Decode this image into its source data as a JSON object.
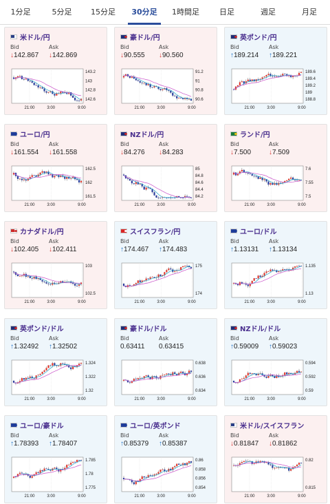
{
  "tabs": [
    {
      "label": "1分足",
      "active": false
    },
    {
      "label": "5分足",
      "active": false
    },
    {
      "label": "15分足",
      "active": false
    },
    {
      "label": "30分足",
      "active": true
    },
    {
      "label": "1時間足",
      "active": false
    },
    {
      "label": "日足",
      "active": false
    },
    {
      "label": "週足",
      "active": false
    },
    {
      "label": "月足",
      "active": false
    }
  ],
  "labels": {
    "bid": "Bid",
    "ask": "Ask"
  },
  "colors": {
    "up": "#1b6fc4",
    "down": "#d6322e",
    "candle_up": "#e03a2f",
    "candle_down": "#2b3f9e",
    "ma_fast": "#22a3c8",
    "ma_slow": "#c84fc8",
    "card_up_bg": "#eef6fb",
    "card_down_bg": "#fcf0f0"
  },
  "pairs": [
    {
      "name": "米ドル/円",
      "flag": "usd",
      "dir": "down",
      "bid": "142.867",
      "ask": "142.869",
      "bid_arrow": "↓",
      "ask_arrow": "↓",
      "x_labels": [
        "21:00",
        "3:00",
        "9:00"
      ],
      "y_labels": [
        "143.2",
        "143",
        "142.8",
        "142.6"
      ]
    },
    {
      "name": "豪ドル/円",
      "flag": "aud",
      "dir": "down",
      "bid": "90.555",
      "ask": "90.560",
      "bid_arrow": "↓",
      "ask_arrow": "↓",
      "x_labels": [
        "21:00",
        "3:00",
        "9:00"
      ],
      "y_labels": [
        "91.2",
        "91",
        "90.8",
        "90.6"
      ]
    },
    {
      "name": "英ポンド/円",
      "flag": "gbp",
      "dir": "up",
      "bid": "189.214",
      "ask": "189.221",
      "bid_arrow": "↑",
      "ask_arrow": "↑",
      "x_labels": [
        "21:00",
        "3:00",
        "9:00"
      ],
      "y_labels": [
        "189.6",
        "189.4",
        "189.2",
        "189",
        "188.8"
      ]
    },
    {
      "name": "ユーロ/円",
      "flag": "eur",
      "dir": "down",
      "bid": "161.554",
      "ask": "161.558",
      "bid_arrow": "↓",
      "ask_arrow": "↓",
      "x_labels": [
        "21:00",
        "3:00",
        "9:00"
      ],
      "y_labels": [
        "162.5",
        "162",
        "161.5"
      ]
    },
    {
      "name": "NZドル/円",
      "flag": "nzd",
      "dir": "down",
      "bid": "84.276",
      "ask": "84.283",
      "bid_arrow": "↓",
      "ask_arrow": "↓",
      "x_labels": [
        "21:00",
        "3:00",
        "9:00"
      ],
      "y_labels": [
        "85",
        "84.8",
        "84.6",
        "84.4",
        "84.2"
      ]
    },
    {
      "name": "ランド/円",
      "flag": "zar",
      "dir": "down",
      "bid": "7.500",
      "ask": "7.509",
      "bid_arrow": "↓",
      "ask_arrow": "↓",
      "x_labels": [
        "21:00",
        "3:00",
        "9:00"
      ],
      "y_labels": [
        "7.6",
        "7.55",
        "7.5"
      ]
    },
    {
      "name": "カナダドル/円",
      "flag": "cad",
      "dir": "down",
      "bid": "102.405",
      "ask": "102.411",
      "bid_arrow": "↓",
      "ask_arrow": "↓",
      "x_labels": [
        "21:00",
        "3:00",
        "9:00"
      ],
      "y_labels": [
        "103",
        "102.5"
      ]
    },
    {
      "name": "スイスフラン/円",
      "flag": "chf",
      "dir": "up",
      "bid": "174.467",
      "ask": "174.483",
      "bid_arrow": "↑",
      "ask_arrow": "↑",
      "x_labels": [
        "21:00",
        "3:00",
        "9:00"
      ],
      "y_labels": [
        "175",
        "174"
      ]
    },
    {
      "name": "ユーロ/ドル",
      "flag": "eur",
      "dir": "up",
      "bid": "1.13131",
      "ask": "1.13134",
      "bid_arrow": "↑",
      "ask_arrow": "↑",
      "x_labels": [
        "21:00",
        "3:00",
        "9:00"
      ],
      "y_labels": [
        "1.135",
        "1.13"
      ]
    },
    {
      "name": "英ポンド/ドル",
      "flag": "gbp",
      "dir": "up",
      "bid": "1.32492",
      "ask": "1.32502",
      "bid_arrow": "↑",
      "ask_arrow": "↑",
      "x_labels": [
        "21:00",
        "3:00",
        "9:00"
      ],
      "y_labels": [
        "1.324",
        "1.322",
        "1.32"
      ]
    },
    {
      "name": "豪ドル/ドル",
      "flag": "aud",
      "dir": "up",
      "bid": "0.63411",
      "ask": "0.63415",
      "bid_arrow": "",
      "ask_arrow": "",
      "x_labels": [
        "21:00",
        "3:00",
        "9:00"
      ],
      "y_labels": [
        "0.638",
        "0.636",
        "0.634"
      ]
    },
    {
      "name": "NZドル/ドル",
      "flag": "nzd",
      "dir": "up",
      "bid": "0.59009",
      "ask": "0.59023",
      "bid_arrow": "↑",
      "ask_arrow": "↑",
      "x_labels": [
        "21:00",
        "3:00",
        "9:00"
      ],
      "y_labels": [
        "0.594",
        "0.592",
        "0.59"
      ]
    },
    {
      "name": "ユーロ/豪ドル",
      "flag": "eur",
      "dir": "up",
      "bid": "1.78393",
      "ask": "1.78407",
      "bid_arrow": "↑",
      "ask_arrow": "↑",
      "x_labels": [
        "21:00",
        "3:00",
        "9:00"
      ],
      "y_labels": [
        "1.785",
        "1.78",
        "1.775"
      ]
    },
    {
      "name": "ユーロ/英ポンド",
      "flag": "eur",
      "dir": "up",
      "bid": "0.85379",
      "ask": "0.85387",
      "bid_arrow": "↑",
      "ask_arrow": "↑",
      "x_labels": [
        "21:00",
        "3:00",
        "9:00"
      ],
      "y_labels": [
        "0.86",
        "0.858",
        "0.856",
        "0.854"
      ]
    },
    {
      "name": "米ドル/スイスフラン",
      "flag": "usd",
      "dir": "down",
      "bid": "0.81847",
      "ask": "0.81862",
      "bid_arrow": "↓",
      "ask_arrow": "↓",
      "x_labels": [
        "21:00",
        "3:00",
        "9:00"
      ],
      "y_labels": [
        "0.82",
        "0.815"
      ]
    }
  ]
}
